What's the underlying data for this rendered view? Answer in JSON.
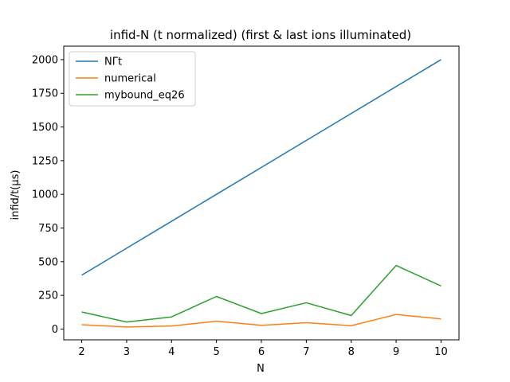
{
  "chart_data": {
    "type": "line",
    "title": "infid-N (t normalized) (first & last ions illuminated)",
    "xlabel": "N",
    "ylabel": "infid/t(μs)",
    "x": [
      2,
      3,
      4,
      5,
      6,
      7,
      8,
      9,
      10
    ],
    "xlim": [
      1.6,
      10.4
    ],
    "ylim": [
      -80,
      2100
    ],
    "xticks": [
      2,
      3,
      4,
      5,
      6,
      7,
      8,
      9,
      10
    ],
    "yticks": [
      0,
      250,
      500,
      750,
      1000,
      1250,
      1500,
      1750,
      2000
    ],
    "grid": false,
    "legend_position": "top-left",
    "series": [
      {
        "name": "NΓt",
        "color": "#1f77b4",
        "values": [
          400,
          600,
          800,
          1000,
          1200,
          1400,
          1600,
          1800,
          2000
        ]
      },
      {
        "name": "numerical",
        "color": "#ff7f0e",
        "values": [
          32,
          15,
          23,
          58,
          28,
          47,
          25,
          108,
          75
        ]
      },
      {
        "name": "mybound_eq26",
        "color": "#2ca02c",
        "values": [
          127,
          52,
          90,
          242,
          115,
          195,
          100,
          472,
          320
        ]
      }
    ]
  }
}
